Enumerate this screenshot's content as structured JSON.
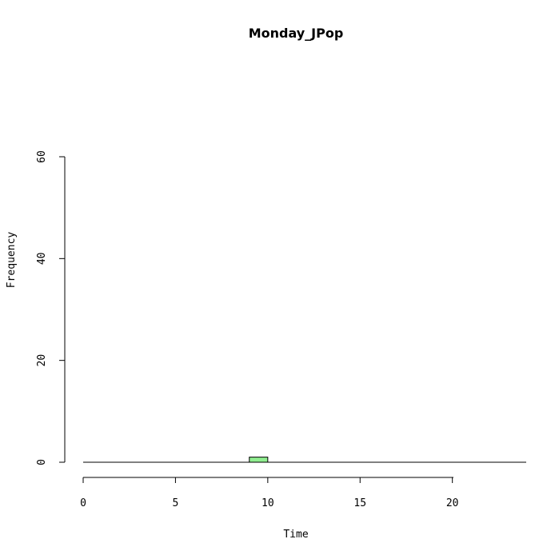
{
  "chart_data": {
    "type": "bar",
    "title": "Monday_JPop",
    "xlabel": "Time",
    "ylabel": "Frequency",
    "xlim": [
      0,
      24
    ],
    "ylim": [
      0,
      60
    ],
    "x_ticks": [
      0,
      5,
      10,
      15,
      20
    ],
    "y_ticks": [
      0,
      20,
      40,
      60
    ],
    "bar_color": "#90EE90",
    "grid": false,
    "bars": [
      {
        "x_start": 9,
        "x_end": 10,
        "value": 1
      }
    ]
  }
}
